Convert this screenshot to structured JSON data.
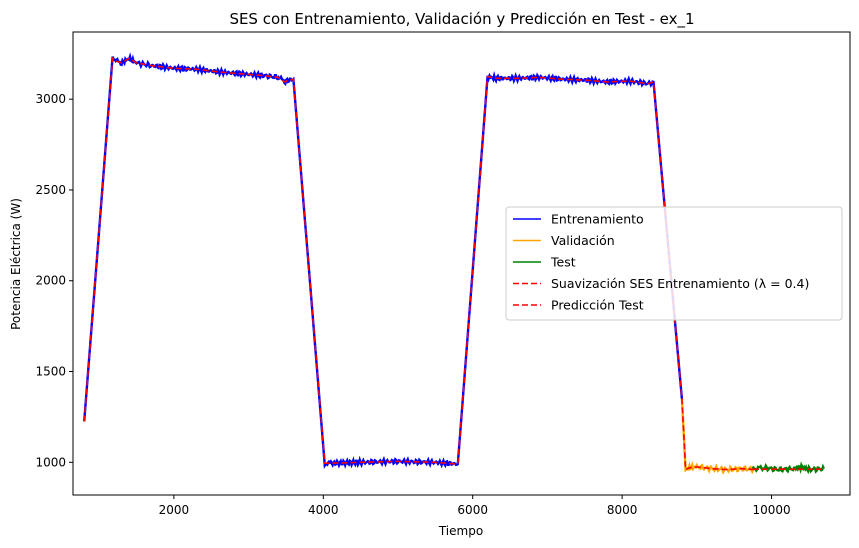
{
  "chart_data": {
    "type": "line",
    "title": "SES con Entrenamiento, Validación y Predicción en Test - ex_1",
    "xlabel": "Tiempo",
    "ylabel": "Potencia Eléctrica (W)",
    "xlim": [
      650,
      11050
    ],
    "ylim": [
      820,
      3370
    ],
    "xticks": [
      2000,
      4000,
      6000,
      8000,
      10000
    ],
    "xtick_labels": [
      "2000",
      "4000",
      "6000",
      "8000",
      "10000"
    ],
    "yticks": [
      1000,
      1500,
      2000,
      2500,
      3000
    ],
    "ytick_labels": [
      "1000",
      "1500",
      "2000",
      "2500",
      "3000"
    ],
    "grid": false,
    "legend_position": "center-right",
    "series": [
      {
        "name": "Entrenamiento",
        "color": "#0000ff",
        "style": "solid",
        "x": [
          800,
          1180,
          1220,
          1300,
          1400,
          1500,
          1700,
          2000,
          2300,
          2600,
          2900,
          3200,
          3400,
          3480,
          3540,
          3600,
          4020,
          4100,
          4500,
          5000,
          5500,
          5800,
          6200,
          6300,
          6600,
          6900,
          7200,
          7500,
          7800,
          8100,
          8350,
          8420,
          8800
        ],
        "y": [
          1225,
          3225,
          3210,
          3200,
          3225,
          3200,
          3185,
          3170,
          3165,
          3150,
          3140,
          3130,
          3120,
          3095,
          3105,
          3110,
          995,
          995,
          1000,
          1005,
          1000,
          990,
          3125,
          3115,
          3115,
          3120,
          3110,
          3105,
          3095,
          3100,
          3085,
          3095,
          1350
        ]
      },
      {
        "name": "Validación",
        "color": "#ffa500",
        "style": "solid",
        "x": [
          8800,
          8850,
          8900,
          9000,
          9200,
          9400,
          9600,
          9800
        ],
        "y": [
          1350,
          960,
          970,
          975,
          965,
          960,
          965,
          960
        ]
      },
      {
        "name": "Test",
        "color": "#008000",
        "style": "solid",
        "x": [
          9750,
          9900,
          10100,
          10300,
          10400,
          10500,
          10700
        ],
        "y": [
          965,
          970,
          960,
          965,
          975,
          960,
          965
        ]
      },
      {
        "name": "Suavización SES Entrenamiento (λ = 0.4)",
        "color": "#ff0000",
        "style": "dashed",
        "x": [
          800,
          1180,
          1220,
          1300,
          1400,
          1500,
          1700,
          2000,
          2300,
          2600,
          2900,
          3200,
          3400,
          3480,
          3540,
          3600,
          4020,
          4100,
          4500,
          5000,
          5500,
          5800,
          6200,
          6300,
          6600,
          6900,
          7200,
          7500,
          7800,
          8100,
          8350,
          8420,
          8800,
          8850,
          8900,
          9000,
          9200,
          9400,
          9600,
          9800
        ],
        "y": [
          1225,
          3225,
          3210,
          3200,
          3225,
          3200,
          3185,
          3170,
          3165,
          3150,
          3140,
          3130,
          3120,
          3095,
          3105,
          3110,
          995,
          995,
          1000,
          1005,
          1000,
          990,
          3125,
          3115,
          3115,
          3120,
          3110,
          3105,
          3095,
          3100,
          3085,
          3095,
          1350,
          960,
          970,
          975,
          965,
          960,
          965,
          960
        ]
      },
      {
        "name": "Predicción Test",
        "color": "#ff0000",
        "style": "dashed",
        "x": [
          9750,
          10700
        ],
        "y": [
          962,
          962
        ]
      }
    ]
  }
}
